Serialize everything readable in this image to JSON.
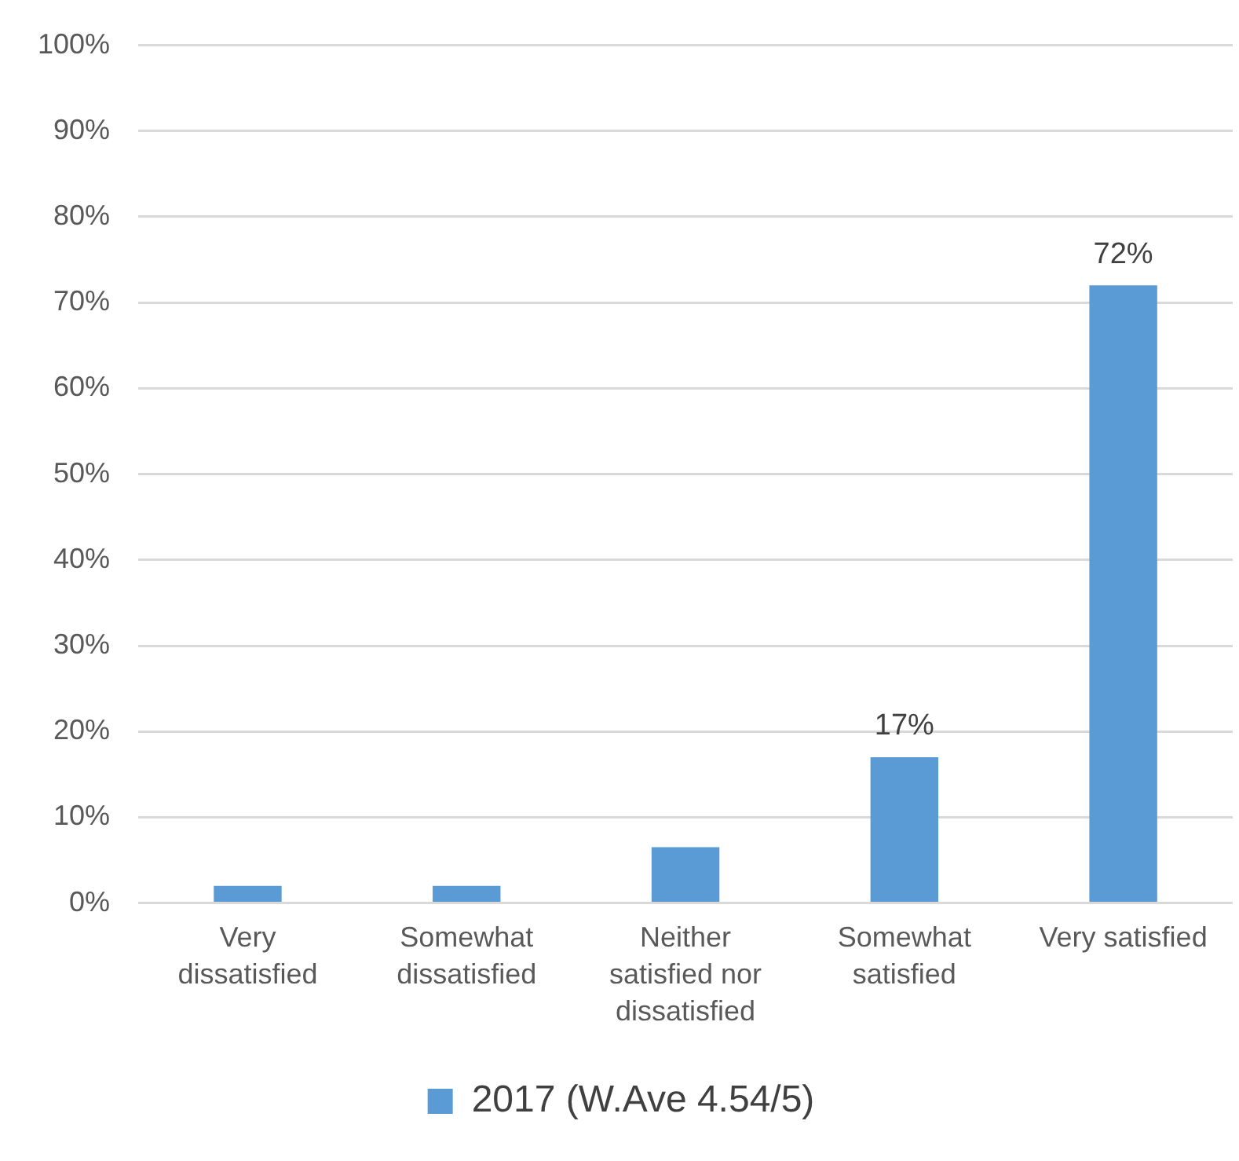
{
  "chart_data": {
    "type": "bar",
    "categories": [
      "Very dissatisfied",
      "Somewhat dissatisfied",
      "Neither satisfied nor dissatisfied",
      "Somewhat satisfied",
      "Very satisfied"
    ],
    "series": [
      {
        "name": "2017 (W.Ave 4.54/5)",
        "color": "#5b9bd5",
        "values": [
          2,
          2,
          6.5,
          17,
          72
        ],
        "value_labels": [
          null,
          null,
          null,
          "17%",
          "72%"
        ]
      }
    ],
    "ylim": [
      0,
      100
    ],
    "yticks": [
      {
        "value": 0,
        "label": "0%"
      },
      {
        "value": 10,
        "label": "10%"
      },
      {
        "value": 20,
        "label": "20%"
      },
      {
        "value": 30,
        "label": "30%"
      },
      {
        "value": 40,
        "label": "40%"
      },
      {
        "value": 50,
        "label": "50%"
      },
      {
        "value": 60,
        "label": "60%"
      },
      {
        "value": 70,
        "label": "70%"
      },
      {
        "value": 80,
        "label": "80%"
      },
      {
        "value": 90,
        "label": "90%"
      },
      {
        "value": 100,
        "label": "100%"
      }
    ],
    "grid": "y",
    "legend": "bottom"
  }
}
